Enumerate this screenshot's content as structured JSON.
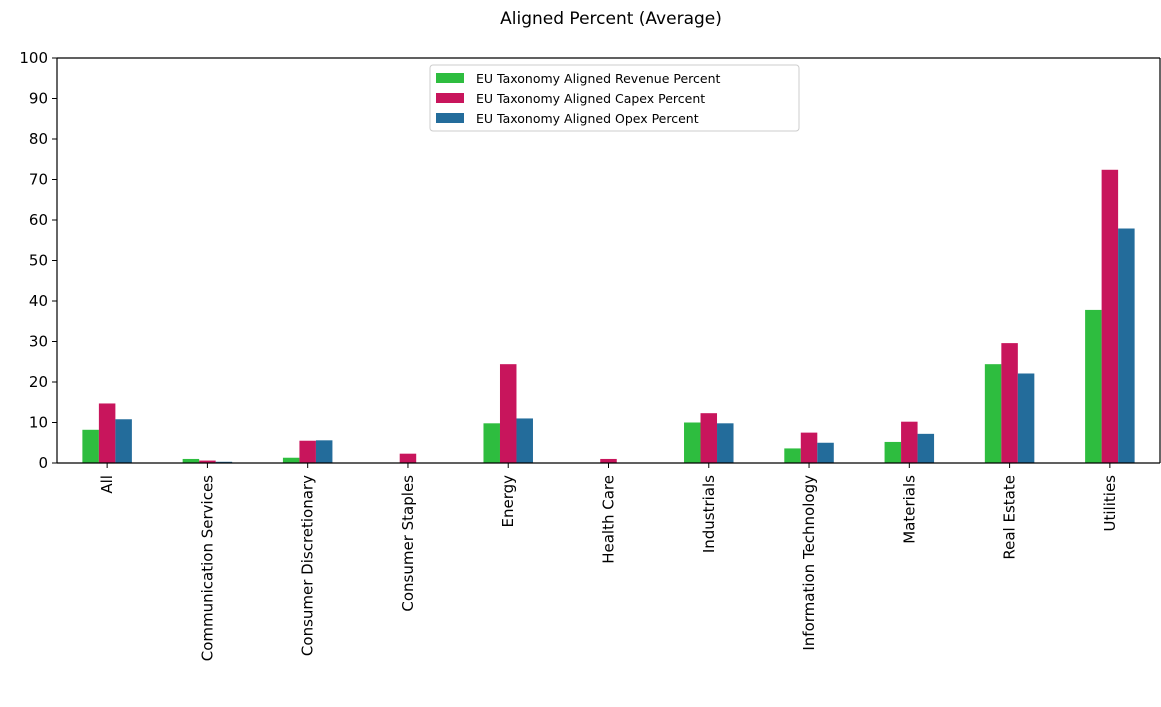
{
  "chart_data": {
    "type": "bar",
    "title": "Aligned Percent (Average)",
    "xlabel": "",
    "ylabel": "",
    "ylim": [
      0,
      100
    ],
    "yticks": [
      0,
      10,
      20,
      30,
      40,
      50,
      60,
      70,
      80,
      90,
      100
    ],
    "grid": false,
    "legend_position": "top-center",
    "categories": [
      "All",
      "Communication Services",
      "Consumer Discretionary",
      "Consumer Staples",
      "Energy",
      "Health Care",
      "Industrials",
      "Information Technology",
      "Materials",
      "Real Estate",
      "Utilities"
    ],
    "series": [
      {
        "name": "EU Taxonomy Aligned Revenue Percent",
        "color": "#2ebd3f",
        "values": [
          8.2,
          1.0,
          1.3,
          0.0,
          9.8,
          0.0,
          10.0,
          3.6,
          5.2,
          24.4,
          37.8
        ]
      },
      {
        "name": "EU Taxonomy Aligned Capex Percent",
        "color": "#c8155c",
        "values": [
          14.7,
          0.6,
          5.5,
          2.3,
          24.4,
          1.0,
          12.3,
          7.5,
          10.2,
          29.6,
          72.4
        ]
      },
      {
        "name": "EU Taxonomy Aligned Opex Percent",
        "color": "#236c9b",
        "values": [
          10.8,
          0.3,
          5.6,
          0.0,
          11.0,
          0.0,
          9.8,
          5.0,
          7.2,
          22.1,
          57.9
        ]
      }
    ]
  }
}
